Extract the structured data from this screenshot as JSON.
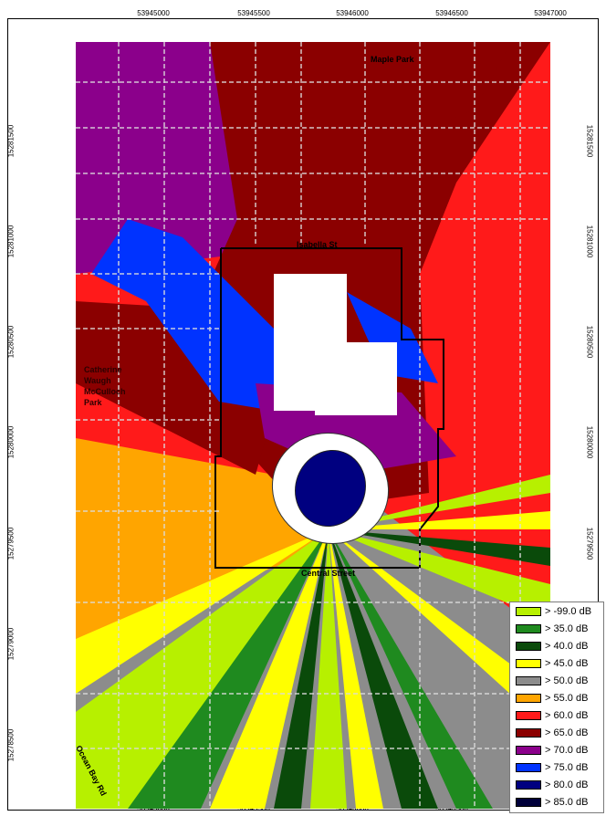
{
  "axes": {
    "x_ticks": [
      "53945000",
      "53945500",
      "53946000",
      "53946500",
      "53947000"
    ],
    "x_ticks_bottom": [
      "53945000",
      "53945500",
      "53946000",
      "53946500"
    ],
    "y_ticks_left": [
      "15281500",
      "15281000",
      "15280500",
      "15280000",
      "15279500",
      "15279000",
      "15278500"
    ],
    "y_ticks_right": [
      "15281500",
      "15281000",
      "15280500",
      "15280000",
      "15279500"
    ]
  },
  "labels": {
    "maple_park": "Maple Park",
    "isabella_st": "Isabella St",
    "park_line1": "Catherine",
    "park_line2": "Waugh",
    "park_line3": "McCulloch",
    "park_line4": "Park",
    "central_street": "Central Street",
    "bay_rd": "Ocean Bay Rd"
  },
  "legend": [
    {
      "label": "> -99.0 dB",
      "color": "#b7f000"
    },
    {
      "label": "> 35.0 dB",
      "color": "#1f8a1f"
    },
    {
      "label": "> 40.0 dB",
      "color": "#0a4a0a"
    },
    {
      "label": "> 45.0 dB",
      "color": "#ffff00"
    },
    {
      "label": "> 50.0 dB",
      "color": "#8c8c8c"
    },
    {
      "label": "> 55.0 dB",
      "color": "#ffa500"
    },
    {
      "label": "> 60.0 dB",
      "color": "#ff1a1a"
    },
    {
      "label": "> 65.0 dB",
      "color": "#8b0000"
    },
    {
      "label": "> 70.0 dB",
      "color": "#8b008b"
    },
    {
      "label": "> 75.0 dB",
      "color": "#0033ff"
    },
    {
      "label": "> 80.0 dB",
      "color": "#000080"
    },
    {
      "label": "> 85.0 dB",
      "color": "#00003a"
    }
  ]
}
